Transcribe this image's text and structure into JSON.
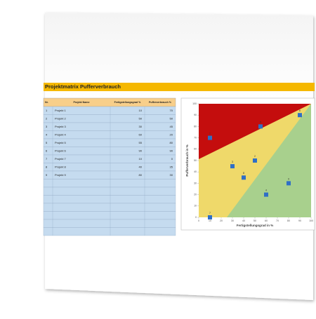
{
  "title": "Projektmatrix Pufferverbrauch",
  "table": {
    "headers": [
      "Nr.",
      "Projekt Name",
      "Fertigstellungsgrad %",
      "Pufferverbrauch %"
    ],
    "rows": [
      [
        1,
        "Projekt 1",
        10,
        70
      ],
      [
        2,
        "Projekt 2",
        50,
        50
      ],
      [
        3,
        "Projekt 3",
        30,
        45
      ],
      [
        4,
        "Projekt 4",
        60,
        20
      ],
      [
        5,
        "Projekt 5",
        55,
        80
      ],
      [
        6,
        "Projekt 6",
        90,
        90
      ],
      [
        7,
        "Projekt 7",
        10,
        0
      ],
      [
        8,
        "Projekt 8",
        40,
        35
      ],
      [
        9,
        "Projekt 9",
        80,
        30
      ]
    ]
  },
  "chart": {
    "type": "scatter",
    "xlabel": "Fertigstellungsgrad in %",
    "ylabel": "Pufferverbrauch in %",
    "xlim": [
      0,
      100
    ],
    "ylim": [
      0,
      100
    ],
    "xticks": [
      0,
      10,
      20,
      30,
      40,
      50,
      60,
      70,
      80,
      90,
      100
    ],
    "yticks": [
      0,
      10,
      20,
      30,
      40,
      50,
      60,
      70,
      80,
      90,
      100
    ],
    "color": "#2f6fc6"
  }
}
